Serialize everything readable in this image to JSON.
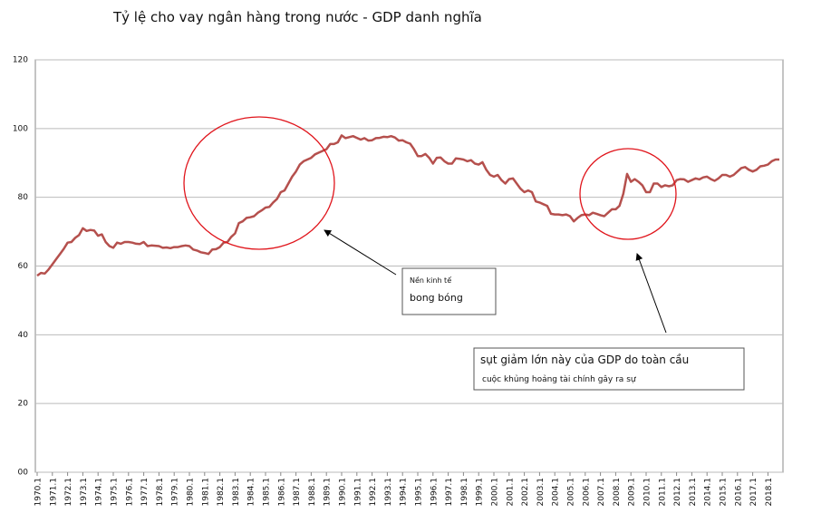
{
  "chart_data": {
    "type": "line",
    "title": "Tỷ lệ cho vay ngân hàng trong nước - GDP danh nghĩa",
    "annotations": [
      "Nền kinh tế",
      "bong bóng",
      "sụt giảm lớn này của GDP do toàn cầu",
      "cuộc khủng hoảng tài chính gây ra sự"
    ],
    "categories": [
      "1970.1",
      null,
      null,
      null,
      "1971.1",
      null,
      null,
      null,
      "1972.1",
      null,
      null,
      null,
      "1973.1",
      null,
      null,
      null,
      "1974.1",
      null,
      null,
      null,
      "1975.1",
      null,
      null,
      null,
      "1976.1",
      null,
      null,
      null,
      "1977.1",
      null,
      null,
      null,
      "1978.1",
      null,
      null,
      null,
      "1979.1",
      null,
      null,
      null,
      "1980.1",
      null,
      null,
      null,
      "1981.1",
      null,
      null,
      null,
      "1982.1",
      null,
      null,
      null,
      "1983.1",
      null,
      null,
      null,
      "1984.1",
      null,
      null,
      null,
      "1985.1",
      null,
      null,
      null,
      "1986.1",
      null,
      null,
      null,
      "1987.1",
      null,
      null,
      null,
      "1988.1",
      null,
      null,
      null,
      "1989.1",
      null,
      null,
      null,
      "1990.1",
      null,
      null,
      null,
      "1991.1",
      null,
      null,
      null,
      "1992.1",
      null,
      null,
      null,
      "1993.1",
      null,
      null,
      null,
      "1994.1",
      null,
      null,
      null,
      "1995.1",
      null,
      null,
      null,
      "1996.1",
      null,
      null,
      null,
      "1997.1",
      null,
      null,
      null,
      "1998.1",
      null,
      null,
      null,
      "1999.1",
      null,
      null,
      null,
      "2000.1",
      null,
      null,
      null,
      "2001.1",
      null,
      null,
      null,
      "2002.1",
      null,
      null,
      null,
      "2003.1",
      null,
      null,
      null,
      "2004.1",
      null,
      null,
      null,
      "2005.1",
      null,
      null,
      null,
      "2006.1",
      null,
      null,
      null,
      "2007.1",
      null,
      null,
      null,
      "2008.1",
      null,
      null,
      null,
      "2009.1",
      null,
      null,
      null,
      "2010.1",
      null,
      null,
      null,
      "2011.1",
      null,
      null,
      null,
      "2012.1",
      null,
      null,
      null,
      "2013.1",
      null,
      null,
      null,
      "2014.1",
      null,
      null,
      null,
      "2015.1",
      null,
      null,
      null,
      "2016.1",
      null,
      null,
      null,
      "2017.1",
      null,
      null,
      null,
      "2018.1",
      null,
      null,
      null
    ],
    "series": [
      {
        "color": "#b5504d",
        "values": [
          57.2,
          58,
          57.8,
          59,
          60.5,
          62,
          63.5,
          65,
          66.8,
          67,
          68.2,
          69,
          71,
          70.2,
          70.5,
          70.3,
          68.8,
          69.2,
          67,
          65.8,
          65.3,
          66.8,
          66.5,
          67,
          67,
          66.8,
          66.5,
          66.4,
          67,
          65.8,
          66,
          65.9,
          65.8,
          65.3,
          65.4,
          65.2,
          65.5,
          65.5,
          65.8,
          66,
          65.8,
          64.8,
          64.5,
          64,
          63.8,
          63.5,
          64.8,
          64.9,
          65.5,
          66.8,
          67,
          68.5,
          69.5,
          72.5,
          73,
          74,
          74.2,
          74.5,
          75.5,
          76.2,
          77,
          77.2,
          78.5,
          79.5,
          81.5,
          82,
          84,
          86,
          87.5,
          89.5,
          90.5,
          91,
          91.5,
          92.5,
          93,
          93.5,
          94,
          95.5,
          95.5,
          96,
          98,
          97.2,
          97.5,
          97.8,
          97.3,
          96.8,
          97.2,
          96.5,
          96.6,
          97.2,
          97.3,
          97.6,
          97.5,
          97.8,
          97.4,
          96.5,
          96.6,
          96,
          95.6,
          94,
          92,
          92,
          92.6,
          91.5,
          89.8,
          91.5,
          91.6,
          90.5,
          89.8,
          89.8,
          91.3,
          91.2,
          91,
          90.5,
          90.8,
          89.8,
          89.5,
          90.2,
          88,
          86.5,
          86,
          86.5,
          85,
          84,
          85.3,
          85.5,
          84,
          82.5,
          81.5,
          82,
          81.5,
          78.8,
          78.5,
          78,
          77.5,
          75.2,
          75,
          75,
          74.8,
          75,
          74.5,
          73,
          74,
          74.8,
          75,
          74.8,
          75.5,
          75.2,
          74.8,
          74.5,
          75.5,
          76.5,
          76.5,
          77.5,
          81,
          86.8,
          84.5,
          85.3,
          84.5,
          83.5,
          81.5,
          81.5,
          84,
          84,
          83,
          83.5,
          83.2,
          83.5,
          85,
          85.3,
          85.2,
          84.5,
          85,
          85.5,
          85.2,
          85.8,
          86,
          85.3,
          84.8,
          85.5,
          86.5,
          86.5,
          86,
          86.5,
          87.5,
          88.5,
          88.8,
          88,
          87.5,
          88,
          89,
          89.2,
          89.5,
          90.5,
          91,
          91
        ]
      }
    ],
    "ylim": [
      0,
      120
    ],
    "yticks": [
      {
        "value": 0,
        "label": "00"
      },
      20,
      40,
      60,
      80,
      100,
      120
    ],
    "grid": true
  }
}
